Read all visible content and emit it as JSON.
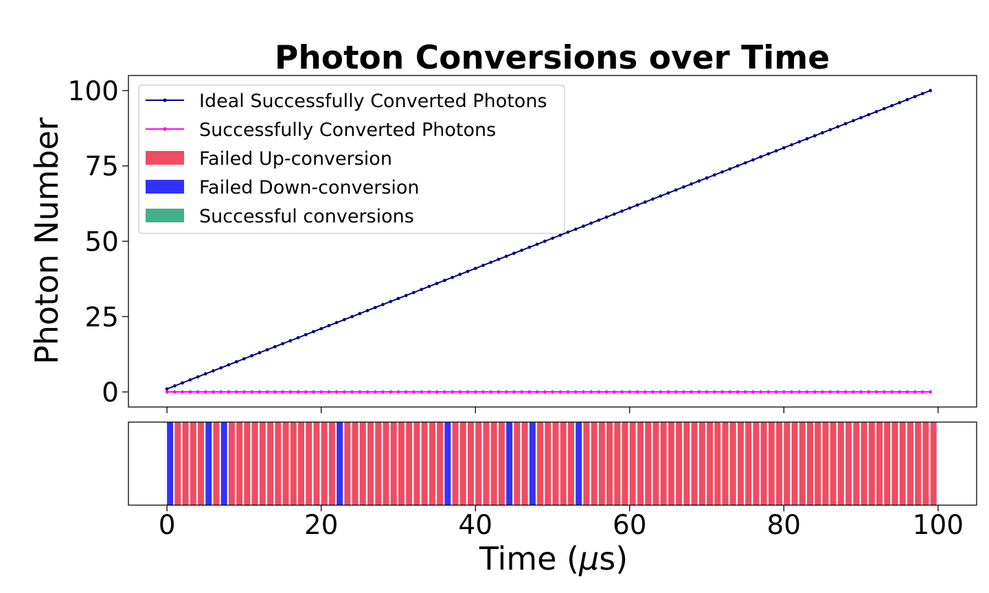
{
  "chart_data": {
    "type": "line",
    "title": "Photon Conversions over Time",
    "ylabel": "Photon Number",
    "xlabel": "Time (μs)",
    "xlabel_prefix": "Time (",
    "xlabel_mu": "μ",
    "xlabel_suffix": "s)",
    "xlim": [
      -5,
      105
    ],
    "ylim": [
      -5,
      105
    ],
    "xticks": [
      0,
      20,
      40,
      60,
      80,
      100
    ],
    "xtick_labels": [
      "0",
      "20",
      "40",
      "60",
      "80",
      "100"
    ],
    "yticks": [
      0,
      25,
      50,
      75,
      100
    ],
    "ytick_labels": [
      "0",
      "25",
      "50",
      "75",
      "100"
    ],
    "series": [
      {
        "name": "Ideal Successfully Converted Photons",
        "color": "#00007f",
        "x_start": 0,
        "x_end": 99,
        "x_step": 1,
        "y_start": 1,
        "y_step": 1
      },
      {
        "name": "Successfully Converted Photons",
        "color": "#ff00ff",
        "x_start": 0,
        "x_end": 99,
        "x_step": 1,
        "y_start": 0,
        "y_step": 0
      }
    ],
    "bar_strip": {
      "bar_width": 0.8,
      "count": 100,
      "default_category": "Failed Up-conversion",
      "down_conversion_failures_at": [
        0,
        5,
        7,
        22,
        36,
        44,
        47,
        53
      ],
      "categories": [
        {
          "name": "Failed Up-conversion",
          "color": "#f04c62"
        },
        {
          "name": "Failed Down-conversion",
          "color": "#3232ff"
        },
        {
          "name": "Successful conversions",
          "color": "#41b08b"
        }
      ]
    },
    "legend": {
      "location": "upper-left",
      "entries": [
        {
          "label": "Ideal Successfully Converted Photons",
          "kind": "line",
          "color": "#00007f"
        },
        {
          "label": "Successfully Converted Photons",
          "kind": "line",
          "color": "#ff00ff"
        },
        {
          "label": "Failed Up-conversion",
          "kind": "patch",
          "color": "#f04c62"
        },
        {
          "label": "Failed Down-conversion",
          "kind": "patch",
          "color": "#3232ff"
        },
        {
          "label": "Successful conversions",
          "kind": "patch",
          "color": "#41b08b"
        }
      ]
    }
  }
}
